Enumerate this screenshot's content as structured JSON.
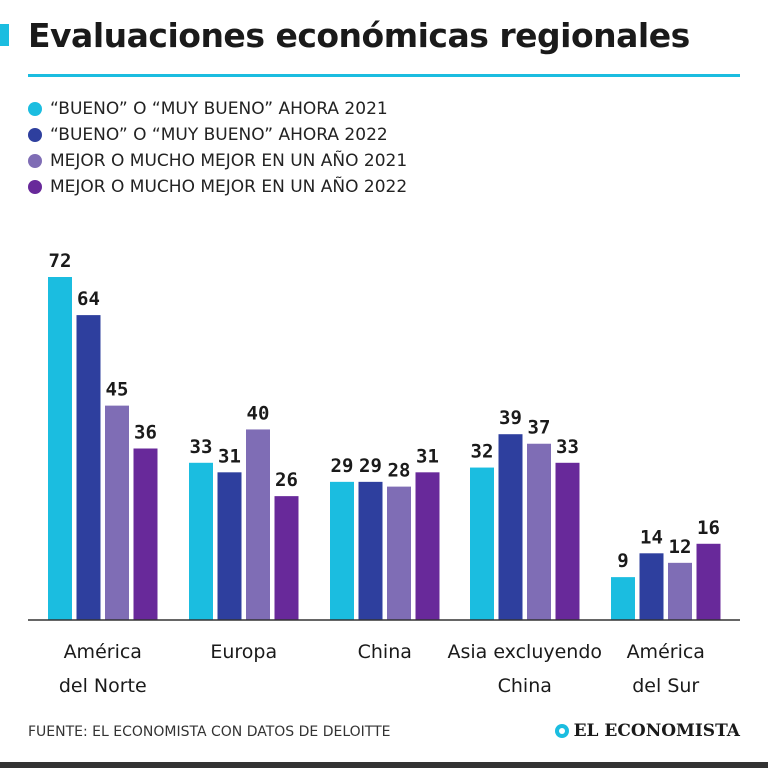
{
  "title": "Evaluaciones económicas regionales",
  "colors": {
    "accent": "#1bbde0",
    "series": [
      "#1bbde0",
      "#2e3f9e",
      "#7f6db5",
      "#68299a"
    ]
  },
  "legend": [
    "“BUENO” O “MUY BUENO” AHORA 2021",
    "“BUENO” O “MUY BUENO” AHORA 2022",
    "MEJOR O MUCHO MEJOR EN UN AÑO 2021",
    "MEJOR O MUCHO MEJOR EN UN AÑO 2022"
  ],
  "chart_data": {
    "type": "bar",
    "title": "Evaluaciones económicas regionales",
    "categories": [
      [
        "América",
        "del Norte"
      ],
      [
        "Europa"
      ],
      [
        "China"
      ],
      [
        "Asia excluyendo",
        "China"
      ],
      [
        "América",
        "del Sur"
      ]
    ],
    "series": [
      {
        "name": "“BUENO” O “MUY BUENO” AHORA 2021",
        "values": [
          72,
          33,
          29,
          32,
          9
        ]
      },
      {
        "name": "“BUENO” O “MUY BUENO” AHORA 2022",
        "values": [
          64,
          31,
          29,
          39,
          14
        ]
      },
      {
        "name": "MEJOR O MUCHO MEJOR EN UN AÑO 2021",
        "values": [
          45,
          40,
          28,
          37,
          12
        ]
      },
      {
        "name": "MEJOR O MUCHO MEJOR EN UN AÑO 2022",
        "values": [
          36,
          26,
          31,
          33,
          16
        ]
      }
    ],
    "ylim": [
      0,
      72
    ],
    "grid": false,
    "legend_position": "top-left",
    "xlabel": "",
    "ylabel": ""
  },
  "footer": {
    "source": "FUENTE: EL ECONOMISTA CON DATOS DE DELOITTE",
    "brand": "EL ECONOMISTA"
  }
}
